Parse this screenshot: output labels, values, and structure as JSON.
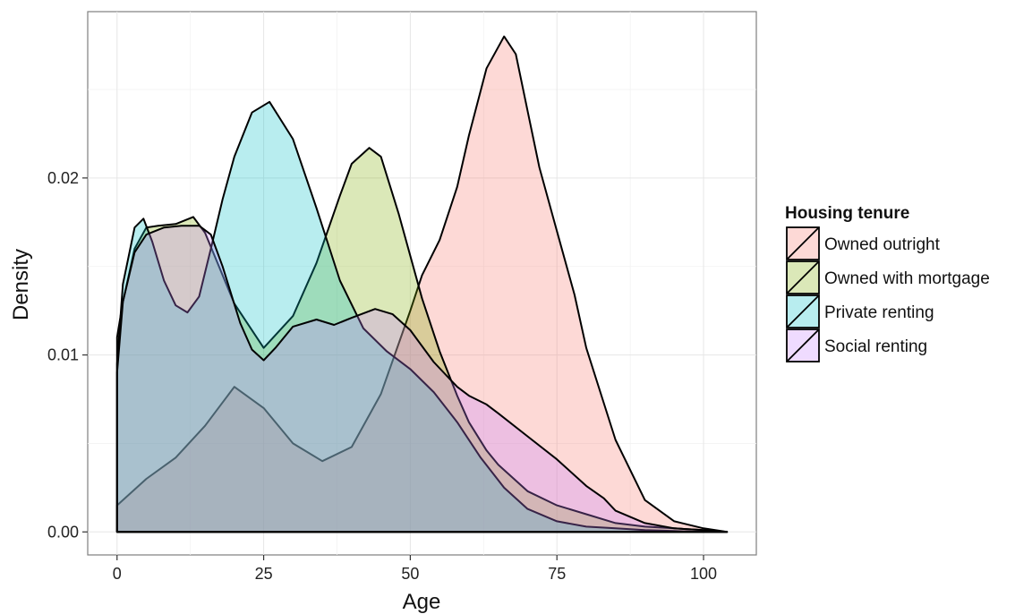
{
  "chart_data": {
    "type": "area",
    "subtype": "density",
    "title": "",
    "xlabel": "Age",
    "ylabel": "Density",
    "xlim": [
      -5,
      109
    ],
    "ylim": [
      -0.0013,
      0.0294
    ],
    "x_ticks": [
      0,
      25,
      50,
      75,
      100
    ],
    "x_tick_labels": [
      "0",
      "25",
      "50",
      "75",
      "100"
    ],
    "y_ticks": [
      0.0,
      0.01,
      0.02
    ],
    "y_tick_labels": [
      "0.00",
      "0.01",
      "0.02"
    ],
    "grid": true,
    "legend": {
      "title": "Housing tenure",
      "position": "right"
    },
    "series": [
      {
        "name": "Owned outright",
        "color": "#F8766D",
        "x": [
          0,
          5,
          10,
          15,
          20,
          25,
          30,
          35,
          40,
          45,
          50,
          52,
          55,
          58,
          60,
          63,
          66,
          68,
          70,
          72,
          75,
          78,
          80,
          85,
          90,
          95,
          100,
          104
        ],
        "y": [
          0.0015,
          0.003,
          0.0042,
          0.006,
          0.0082,
          0.007,
          0.005,
          0.004,
          0.0048,
          0.0078,
          0.0125,
          0.0145,
          0.0165,
          0.0195,
          0.0224,
          0.0262,
          0.028,
          0.027,
          0.0238,
          0.0206,
          0.017,
          0.0134,
          0.0104,
          0.0052,
          0.0018,
          0.0006,
          0.0002,
          0.0
        ]
      },
      {
        "name": "Owned with mortgage",
        "color": "#7CAE00",
        "x": [
          0,
          1,
          3,
          5,
          7,
          10,
          13,
          15,
          20,
          25,
          30,
          34,
          38,
          40,
          43,
          45,
          48,
          52,
          55,
          58,
          60,
          63,
          65,
          70,
          75,
          80,
          85,
          90,
          95,
          100,
          104
        ],
        "y": [
          0.011,
          0.013,
          0.016,
          0.0172,
          0.0173,
          0.0174,
          0.0178,
          0.0169,
          0.0129,
          0.0104,
          0.0122,
          0.0152,
          0.019,
          0.0208,
          0.0217,
          0.0212,
          0.018,
          0.0132,
          0.0102,
          0.0077,
          0.0062,
          0.0046,
          0.0038,
          0.0023,
          0.0015,
          0.001,
          0.0005,
          0.0003,
          0.0002,
          0.0001,
          0.0
        ]
      },
      {
        "name": "Private renting",
        "color": "#00BFC4",
        "x": [
          0,
          1,
          3,
          4.5,
          6,
          8,
          10,
          12,
          14,
          16,
          18,
          20,
          23,
          26,
          30,
          34,
          38,
          42,
          46,
          50,
          54,
          58,
          62,
          66,
          70,
          75,
          80,
          85,
          90,
          95,
          100,
          104
        ],
        "y": [
          0.0095,
          0.014,
          0.0172,
          0.0177,
          0.0164,
          0.0142,
          0.0128,
          0.0124,
          0.0133,
          0.016,
          0.0188,
          0.0212,
          0.0237,
          0.0243,
          0.0222,
          0.0183,
          0.0142,
          0.0115,
          0.0102,
          0.0092,
          0.0079,
          0.0062,
          0.0042,
          0.0025,
          0.0013,
          0.0006,
          0.0003,
          0.0002,
          0.0001,
          5e-05,
          0.0,
          0.0
        ]
      },
      {
        "name": "Social renting",
        "color": "#C77CFF",
        "x": [
          0,
          1,
          3,
          5,
          8,
          11,
          14,
          16,
          18,
          21,
          23,
          25,
          27,
          30,
          34,
          37,
          40,
          44,
          47,
          50,
          54,
          58,
          60,
          63,
          65,
          70,
          75,
          80,
          83,
          85,
          90,
          95,
          100,
          104
        ],
        "y": [
          0.009,
          0.013,
          0.0158,
          0.0168,
          0.0172,
          0.0173,
          0.0173,
          0.0168,
          0.015,
          0.0118,
          0.0103,
          0.0097,
          0.0104,
          0.0116,
          0.012,
          0.0117,
          0.0121,
          0.0126,
          0.0123,
          0.0114,
          0.0096,
          0.0082,
          0.0077,
          0.0072,
          0.0067,
          0.0054,
          0.0041,
          0.0026,
          0.0019,
          0.0012,
          0.0005,
          0.0002,
          0.0001,
          0.0
        ]
      }
    ]
  }
}
